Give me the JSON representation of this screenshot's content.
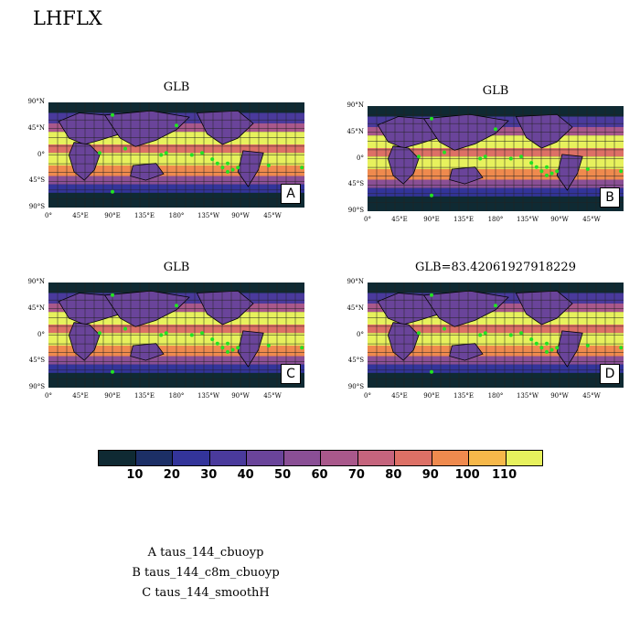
{
  "title": "LHFLX",
  "chart_data": {
    "type": "heatmap",
    "panels": [
      {
        "title": "GLB",
        "letter": "A"
      },
      {
        "title": "GLB",
        "letter": "B"
      },
      {
        "title": "GLB",
        "letter": "C"
      },
      {
        "title": "GLB=83.42061927918229",
        "letter": "D"
      }
    ],
    "lat_ticks": [
      "90°N",
      "45°N",
      "0°",
      "45°S",
      "90°S"
    ],
    "lon_ticks": [
      "0°",
      "45°E",
      "90°E",
      "135°E",
      "180°",
      "135°W",
      "90°W",
      "45°W"
    ],
    "colorbar": {
      "levels": [
        "10",
        "20",
        "30",
        "40",
        "50",
        "60",
        "70",
        "80",
        "90",
        "100",
        "110"
      ],
      "colors": [
        "#0f2a33",
        "#1c2f66",
        "#33349a",
        "#4a3a9c",
        "#6a449a",
        "#8a4f95",
        "#a9588b",
        "#c5647d",
        "#dd7066",
        "#ef8a4e",
        "#f6b84a",
        "#e7f15d"
      ]
    },
    "legend": [
      "A  taus_144_cbuoyp",
      "B  taus_144_c8m_cbuoyp",
      "C  taus_144_smoothH"
    ]
  }
}
